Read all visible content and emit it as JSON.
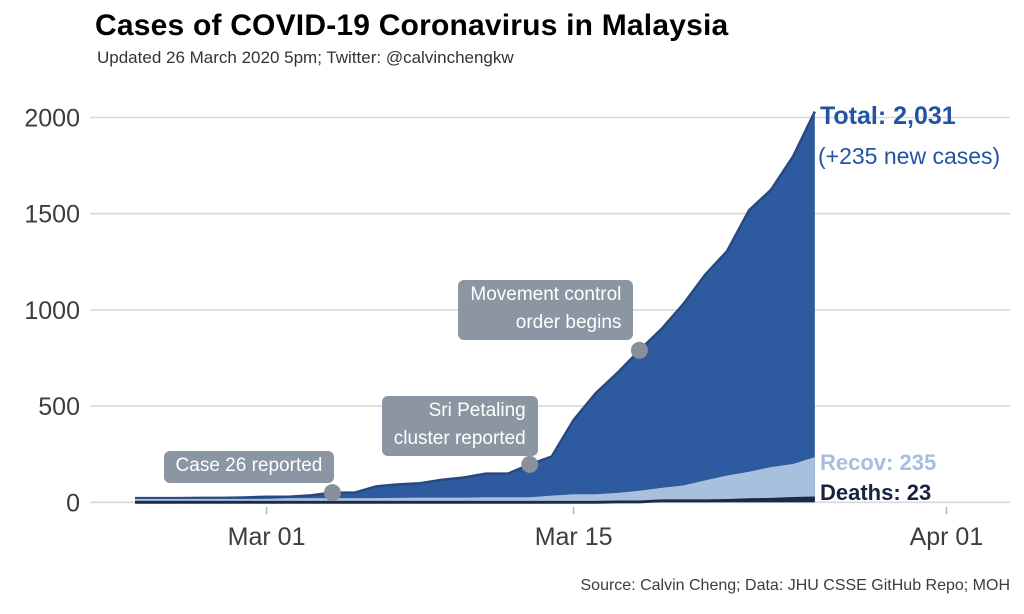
{
  "header": {
    "title": "Cases of COVID-19 Coronavirus in Malaysia",
    "subtitle": "Updated 26 March 2020 5pm; Twitter: @calvinchengkw"
  },
  "footer": {
    "source": "Source: Calvin Cheng; Data: JHU CSSE GitHub Repo; MOH"
  },
  "value_labels": {
    "total": "Total: 2,031",
    "new_cases": "(+235 new cases)",
    "recovered": "Recov: 235",
    "deaths": "Deaths: 23"
  },
  "colors": {
    "total_fill": "#2E5B9F",
    "total_stroke": "#27497F",
    "recovered_fill": "#A9BFDE",
    "deaths": "#1B2A4A",
    "gridline": "#D9D9D9",
    "tick": "#B5B5B5",
    "tick_label": "#3D3D3D",
    "annotation_bg": "#8C95A2",
    "annotation_text": "#FFFFFF",
    "dot": "#8A909B",
    "total_label": "#2254A3",
    "recovered_label": "#A6BEDF",
    "deaths_label": "#16243F",
    "title": "#000000",
    "subtitle": "#333333",
    "source": "#3D3D3D"
  },
  "chart_data": {
    "type": "area",
    "title": "Cases of COVID-19 Coronavirus in Malaysia",
    "xlabel": "",
    "ylabel": "",
    "ylim": [
      0,
      2000
    ],
    "grid": "horizontal",
    "legend_position": "none",
    "x": [
      "Feb 24",
      "Feb 25",
      "Feb 26",
      "Feb 27",
      "Feb 28",
      "Feb 29",
      "Mar 01",
      "Mar 02",
      "Mar 03",
      "Mar 04",
      "Mar 05",
      "Mar 06",
      "Mar 07",
      "Mar 08",
      "Mar 09",
      "Mar 10",
      "Mar 11",
      "Mar 12",
      "Mar 13",
      "Mar 14",
      "Mar 15",
      "Mar 16",
      "Mar 17",
      "Mar 18",
      "Mar 19",
      "Mar 20",
      "Mar 21",
      "Mar 22",
      "Mar 23",
      "Mar 24",
      "Mar 25",
      "Mar 26"
    ],
    "series": [
      {
        "name": "Total",
        "final_value": 2031,
        "values": [
          22,
          22,
          22,
          23,
          23,
          25,
          29,
          29,
          36,
          50,
          50,
          83,
          93,
          99,
          117,
          129,
          149,
          149,
          197,
          238,
          428,
          566,
          673,
          790,
          900,
          1030,
          1183,
          1306,
          1518,
          1624,
          1796,
          2031
        ]
      },
      {
        "name": "Recovered",
        "final_value": 235,
        "values": [
          18,
          18,
          18,
          18,
          18,
          18,
          18,
          22,
          22,
          22,
          22,
          22,
          23,
          24,
          24,
          24,
          26,
          26,
          26,
          35,
          42,
          42,
          49,
          60,
          75,
          87,
          114,
          139,
          159,
          183,
          199,
          235
        ]
      },
      {
        "name": "Deaths",
        "final_value": 23,
        "values": [
          0,
          0,
          0,
          0,
          0,
          0,
          0,
          0,
          0,
          0,
          0,
          0,
          0,
          0,
          0,
          0,
          0,
          0,
          0,
          0,
          0,
          0,
          2,
          2,
          8,
          8,
          8,
          10,
          14,
          16,
          20,
          23
        ]
      }
    ],
    "y_ticks": [
      0,
      500,
      1000,
      1500,
      2000
    ],
    "x_ticks": [
      {
        "label": "Mar 01",
        "day_index": 6
      },
      {
        "label": "Mar 15",
        "day_index": 20
      },
      {
        "label": "Apr 01",
        "day_index": 37
      }
    ],
    "annotations": [
      {
        "id": "case-26",
        "lines": [
          "Case 26 reported"
        ],
        "date": "Mar 04",
        "day_index": 9,
        "value": 50
      },
      {
        "id": "sri-petaling",
        "lines": [
          "Sri Petaling",
          "cluster reported"
        ],
        "date": "Mar 13",
        "day_index": 18,
        "value": 197
      },
      {
        "id": "mco",
        "lines": [
          "Movement control",
          "order begins"
        ],
        "date": "Mar 18",
        "day_index": 23,
        "value": 790
      }
    ]
  }
}
